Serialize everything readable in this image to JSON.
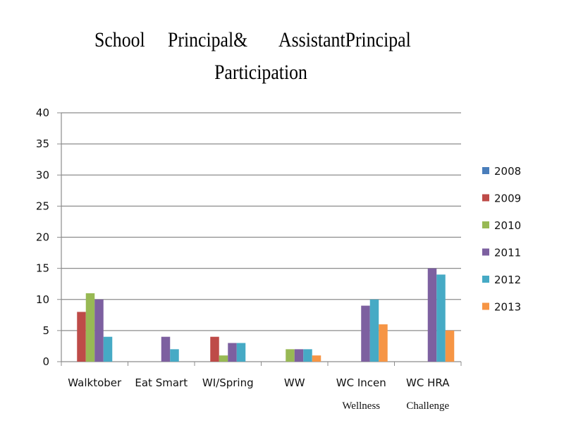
{
  "chart_data": {
    "type": "bar",
    "title_parts": [
      "School",
      "Principal&",
      "AssistantPrincipal",
      "Participation"
    ],
    "categories": [
      "Walktober",
      "Eat Smart",
      "WI/Spring",
      "WW",
      "WC Incen",
      "WC HRA"
    ],
    "series": [
      {
        "name": "2008",
        "color": "#4a7ebb",
        "values": [
          0,
          0,
          0,
          0,
          0,
          0
        ]
      },
      {
        "name": "2009",
        "color": "#be4b48",
        "values": [
          8,
          0,
          4,
          0,
          0,
          0
        ]
      },
      {
        "name": "2010",
        "color": "#98b954",
        "values": [
          11,
          0,
          1,
          2,
          0,
          0
        ]
      },
      {
        "name": "2011",
        "color": "#7d60a0",
        "values": [
          10,
          4,
          3,
          2,
          9,
          15
        ]
      },
      {
        "name": "2012",
        "color": "#46aac5",
        "values": [
          4,
          2,
          3,
          2,
          10,
          14
        ]
      },
      {
        "name": "2013",
        "color": "#f69545",
        "values": [
          0,
          0,
          0,
          1,
          6,
          5
        ]
      }
    ],
    "ylim": [
      0,
      40
    ],
    "yticks": [
      0,
      5,
      10,
      15,
      20,
      25,
      30,
      35,
      40
    ],
    "grid": true,
    "legend_position": "right",
    "annotations": [
      "Wellness",
      "Challenge"
    ]
  }
}
